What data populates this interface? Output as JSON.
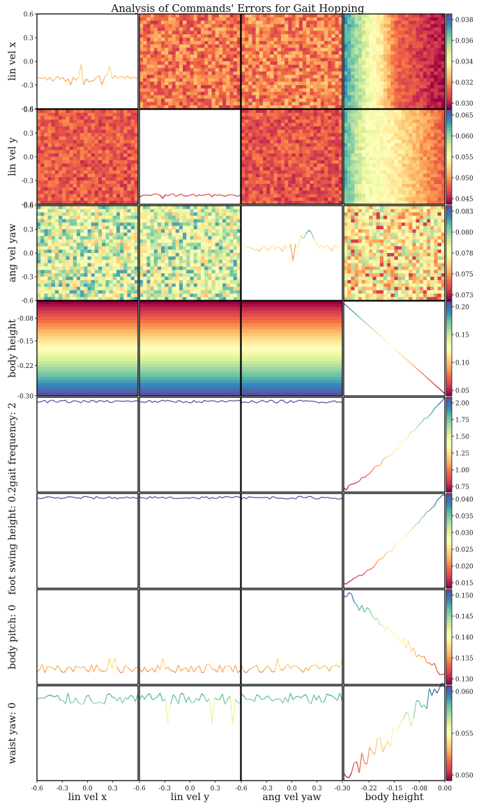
{
  "title": "Analysis of Commands' Errors for Gait Hopping",
  "xlabels": [
    "lin vel x",
    "lin vel y",
    "ang vel yaw",
    "body height"
  ],
  "ylabels": [
    "lin vel x",
    "lin vel y",
    "ang vel yaw",
    "body height",
    "gait frequency: 2",
    "foot swing height: 0.2",
    "body pitch: 0",
    "waist yaw: 0"
  ],
  "xticks": {
    "vel": [
      "-0.6",
      "-0.3",
      "0.0",
      "0.3"
    ],
    "vel_last": [
      "-0.6",
      "-0.3",
      "0.0",
      "0.3",
      "-0.30"
    ],
    "height": [
      "-0.22",
      "-0.15",
      "-0.08",
      "0.00"
    ]
  },
  "yticks": {
    "vel": [
      "0.6",
      "0.3",
      "0.0",
      "-0.3",
      "-0.6"
    ],
    "height": [
      "-0.08",
      "-0.15",
      "-0.22",
      "-0.30"
    ]
  },
  "colorbars": [
    {
      "ticks": [
        "0.038",
        "0.036",
        "0.034",
        "0.032",
        "0.030"
      ]
    },
    {
      "ticks": [
        "0.065",
        "0.060",
        "0.055",
        "0.050",
        "0.045"
      ]
    },
    {
      "ticks": [
        "0.083",
        "0.080",
        "0.078",
        "0.075",
        "0.073"
      ]
    },
    {
      "ticks": [
        "0.20",
        "0.15",
        "0.10",
        "0.05"
      ]
    },
    {
      "ticks": [
        "2.00",
        "1.75",
        "1.50",
        "1.25",
        "1.00",
        "0.75"
      ]
    },
    {
      "ticks": [
        "0.040",
        "0.035",
        "0.030",
        "0.025",
        "0.020",
        "0.015"
      ]
    },
    {
      "ticks": [
        "0.150",
        "0.145",
        "0.140",
        "0.135",
        "0.130"
      ]
    },
    {
      "ticks": [
        "0.060",
        "0.055",
        "0.050"
      ]
    }
  ],
  "chart_data": {
    "type": "heatmap",
    "colormap": "Spectral",
    "variables": [
      "lin vel x",
      "lin vel y",
      "ang vel yaw",
      "body height"
    ],
    "rows": [
      {
        "label": "lin vel x",
        "cbar_range": [
          0.0295,
          0.0395
        ]
      },
      {
        "label": "lin vel y",
        "cbar_range": [
          0.043,
          0.065
        ]
      },
      {
        "label": "ang vel yaw",
        "cbar_range": [
          0.072,
          0.0835
        ]
      },
      {
        "label": "body height",
        "cbar_range": [
          0.0,
          0.21
        ]
      },
      {
        "label": "gait frequency: 2",
        "cbar_range": [
          0.7,
          2.02
        ]
      },
      {
        "label": "foot swing height: 0.2",
        "cbar_range": [
          0.012,
          0.0415
        ]
      },
      {
        "label": "body pitch: 0",
        "cbar_range": [
          0.127,
          0.1515
        ]
      },
      {
        "label": "waist yaw: 0",
        "cbar_range": [
          0.047,
          0.0635
        ]
      }
    ],
    "vel_range": [
      -0.6,
      0.6
    ],
    "height_range": [
      -0.3,
      0.0
    ],
    "diagonal_line_lin_vel_x": [
      -0.2,
      -0.21,
      -0.22,
      -0.2,
      -0.24,
      -0.2,
      -0.25,
      -0.22,
      -0.19,
      -0.23,
      -0.2,
      -0.26,
      -0.22,
      -0.3,
      -0.2,
      -0.24,
      -0.21,
      -0.04,
      -0.3,
      -0.22,
      -0.26,
      -0.25,
      -0.24,
      -0.2,
      -0.18,
      -0.3,
      -0.21,
      -0.17,
      -0.06,
      -0.22,
      -0.18,
      -0.21,
      -0.2,
      -0.19,
      -0.22,
      -0.18,
      -0.22,
      -0.2,
      -0.21,
      -0.22
    ],
    "diagonal_line_lin_vel_y": [
      0.044,
      0.0455,
      0.046,
      0.0458,
      0.0455,
      0.046,
      0.0472,
      0.0465,
      0.0458,
      0.043,
      0.0462,
      0.0452,
      0.0465,
      0.047,
      0.0448,
      0.0458,
      0.0468,
      0.0455,
      0.045,
      0.0455,
      0.0462,
      0.0465,
      0.0448,
      0.0462,
      0.0455,
      0.046,
      0.0462,
      0.0468,
      0.0442,
      0.0465,
      0.0455,
      0.0462,
      0.0455,
      0.0448,
      0.0458,
      0.0462,
      0.046,
      0.0455,
      0.0448,
      0.0462
    ],
    "diagonal_line_ang_vel_yaw": [
      0.0785,
      0.0775,
      0.077,
      0.0768,
      0.0765,
      0.076,
      0.0762,
      0.0755,
      0.0765,
      0.077,
      0.0758,
      0.0765,
      0.0775,
      0.0762,
      0.077,
      0.0765,
      0.0755,
      0.0775,
      0.0765,
      0.0778,
      0.0725,
      0.078,
      0.0765,
      0.0805,
      0.0795,
      0.081,
      0.0823,
      0.0815,
      0.0795,
      0.078,
      0.0765,
      0.0775,
      0.0765,
      0.0775,
      0.0768,
      0.0755,
      0.0775,
      0.0768,
      0.0775,
      0.0772
    ],
    "body_height_vs_body_height": {
      "x": [
        -0.3,
        0.0
      ],
      "y": [
        0.0,
        -0.3
      ]
    },
    "gait_frequency_vs_body_height": {
      "x": [
        -0.3,
        0.0
      ],
      "y": [
        0.75,
        2.0
      ]
    },
    "foot_swing_height_vs_body_height": {
      "x": [
        -0.3,
        0.0
      ],
      "y": [
        0.013,
        0.041
      ]
    },
    "body_pitch_vs_body_height": {
      "x": [
        -0.3,
        0.0
      ],
      "y": [
        0.151,
        0.129
      ]
    },
    "waist_yaw_vs_body_height": {
      "x": [
        -0.3,
        0.0
      ],
      "y": [
        0.047,
        0.063
      ]
    }
  }
}
